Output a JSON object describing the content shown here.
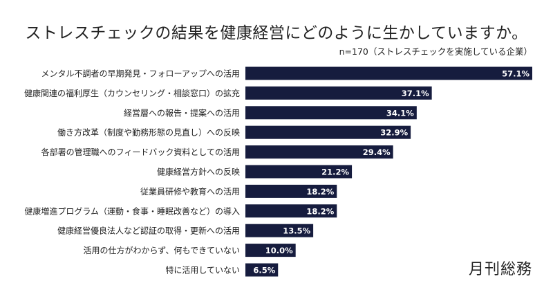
{
  "chart_data": {
    "type": "bar",
    "orientation": "horizontal",
    "title": "ストレスチェックの結果を健康経営にどのように生かしていますか。",
    "subtitle": "n=170（ストレスチェックを実施している企業）",
    "categories": [
      "メンタル不調者の早期発見・フォローアップへの活用",
      "健康関連の福利厚生（カウンセリング・相談窓口）の拡充",
      "経営層への報告・提案への活用",
      "働き方改革（制度や勤務形態の見直し）への反映",
      "各部署の管理職へのフィードバック資料としての活用",
      "健康経営方針への反映",
      "従業員研修や教育への活用",
      "健康増進プログラム（運動・食事・睡眠改善など）の導入",
      "健康経営優良法人など認証の取得・更新への活用",
      "活用の仕方がわからず、何もできていない",
      "特に活用していない"
    ],
    "values": [
      57.1,
      37.1,
      34.1,
      32.9,
      29.4,
      21.2,
      18.2,
      18.2,
      13.5,
      10.0,
      6.5
    ],
    "value_labels": [
      "57.1%",
      "37.1%",
      "34.1%",
      "32.9%",
      "29.4%",
      "21.2%",
      "18.2%",
      "18.2%",
      "13.5%",
      "10.0%",
      "6.5%"
    ],
    "unit": "%",
    "xlim": [
      0,
      57.1
    ],
    "grid": false,
    "bar_color": "#161c3e",
    "label_color": "#ffffff"
  },
  "logo": "月刊総務"
}
